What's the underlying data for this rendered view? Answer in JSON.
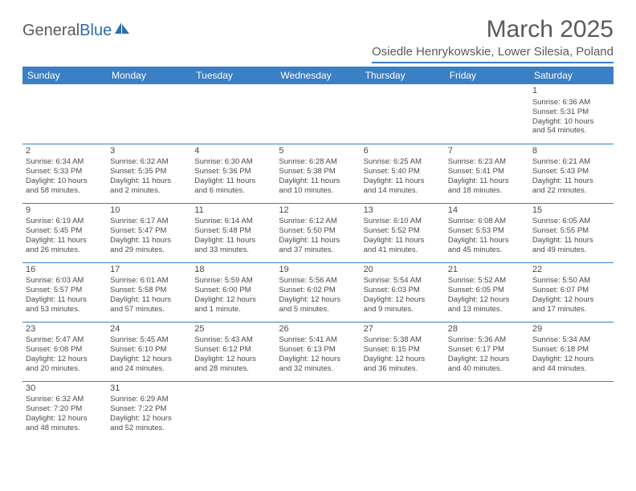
{
  "logo": {
    "part1": "General",
    "part2": "Blue"
  },
  "title": "March 2025",
  "location": "Osiedle Henrykowskie, Lower Silesia, Poland",
  "colors": {
    "header_bg": "#3b7fc4",
    "header_text": "#ffffff",
    "border": "#3b7fc4",
    "text": "#4a4a4a",
    "logo_gray": "#5a5a5a",
    "logo_blue": "#2a6db0"
  },
  "weekdays": [
    "Sunday",
    "Monday",
    "Tuesday",
    "Wednesday",
    "Thursday",
    "Friday",
    "Saturday"
  ],
  "weeks": [
    [
      null,
      null,
      null,
      null,
      null,
      null,
      {
        "n": "1",
        "sr": "Sunrise: 6:36 AM",
        "ss": "Sunset: 5:31 PM",
        "dl1": "Daylight: 10 hours",
        "dl2": "and 54 minutes."
      }
    ],
    [
      {
        "n": "2",
        "sr": "Sunrise: 6:34 AM",
        "ss": "Sunset: 5:33 PM",
        "dl1": "Daylight: 10 hours",
        "dl2": "and 58 minutes."
      },
      {
        "n": "3",
        "sr": "Sunrise: 6:32 AM",
        "ss": "Sunset: 5:35 PM",
        "dl1": "Daylight: 11 hours",
        "dl2": "and 2 minutes."
      },
      {
        "n": "4",
        "sr": "Sunrise: 6:30 AM",
        "ss": "Sunset: 5:36 PM",
        "dl1": "Daylight: 11 hours",
        "dl2": "and 6 minutes."
      },
      {
        "n": "5",
        "sr": "Sunrise: 6:28 AM",
        "ss": "Sunset: 5:38 PM",
        "dl1": "Daylight: 11 hours",
        "dl2": "and 10 minutes."
      },
      {
        "n": "6",
        "sr": "Sunrise: 6:25 AM",
        "ss": "Sunset: 5:40 PM",
        "dl1": "Daylight: 11 hours",
        "dl2": "and 14 minutes."
      },
      {
        "n": "7",
        "sr": "Sunrise: 6:23 AM",
        "ss": "Sunset: 5:41 PM",
        "dl1": "Daylight: 11 hours",
        "dl2": "and 18 minutes."
      },
      {
        "n": "8",
        "sr": "Sunrise: 6:21 AM",
        "ss": "Sunset: 5:43 PM",
        "dl1": "Daylight: 11 hours",
        "dl2": "and 22 minutes."
      }
    ],
    [
      {
        "n": "9",
        "sr": "Sunrise: 6:19 AM",
        "ss": "Sunset: 5:45 PM",
        "dl1": "Daylight: 11 hours",
        "dl2": "and 26 minutes."
      },
      {
        "n": "10",
        "sr": "Sunrise: 6:17 AM",
        "ss": "Sunset: 5:47 PM",
        "dl1": "Daylight: 11 hours",
        "dl2": "and 29 minutes."
      },
      {
        "n": "11",
        "sr": "Sunrise: 6:14 AM",
        "ss": "Sunset: 5:48 PM",
        "dl1": "Daylight: 11 hours",
        "dl2": "and 33 minutes."
      },
      {
        "n": "12",
        "sr": "Sunrise: 6:12 AM",
        "ss": "Sunset: 5:50 PM",
        "dl1": "Daylight: 11 hours",
        "dl2": "and 37 minutes."
      },
      {
        "n": "13",
        "sr": "Sunrise: 6:10 AM",
        "ss": "Sunset: 5:52 PM",
        "dl1": "Daylight: 11 hours",
        "dl2": "and 41 minutes."
      },
      {
        "n": "14",
        "sr": "Sunrise: 6:08 AM",
        "ss": "Sunset: 5:53 PM",
        "dl1": "Daylight: 11 hours",
        "dl2": "and 45 minutes."
      },
      {
        "n": "15",
        "sr": "Sunrise: 6:05 AM",
        "ss": "Sunset: 5:55 PM",
        "dl1": "Daylight: 11 hours",
        "dl2": "and 49 minutes."
      }
    ],
    [
      {
        "n": "16",
        "sr": "Sunrise: 6:03 AM",
        "ss": "Sunset: 5:57 PM",
        "dl1": "Daylight: 11 hours",
        "dl2": "and 53 minutes."
      },
      {
        "n": "17",
        "sr": "Sunrise: 6:01 AM",
        "ss": "Sunset: 5:58 PM",
        "dl1": "Daylight: 11 hours",
        "dl2": "and 57 minutes."
      },
      {
        "n": "18",
        "sr": "Sunrise: 5:59 AM",
        "ss": "Sunset: 6:00 PM",
        "dl1": "Daylight: 12 hours",
        "dl2": "and 1 minute."
      },
      {
        "n": "19",
        "sr": "Sunrise: 5:56 AM",
        "ss": "Sunset: 6:02 PM",
        "dl1": "Daylight: 12 hours",
        "dl2": "and 5 minutes."
      },
      {
        "n": "20",
        "sr": "Sunrise: 5:54 AM",
        "ss": "Sunset: 6:03 PM",
        "dl1": "Daylight: 12 hours",
        "dl2": "and 9 minutes."
      },
      {
        "n": "21",
        "sr": "Sunrise: 5:52 AM",
        "ss": "Sunset: 6:05 PM",
        "dl1": "Daylight: 12 hours",
        "dl2": "and 13 minutes."
      },
      {
        "n": "22",
        "sr": "Sunrise: 5:50 AM",
        "ss": "Sunset: 6:07 PM",
        "dl1": "Daylight: 12 hours",
        "dl2": "and 17 minutes."
      }
    ],
    [
      {
        "n": "23",
        "sr": "Sunrise: 5:47 AM",
        "ss": "Sunset: 6:08 PM",
        "dl1": "Daylight: 12 hours",
        "dl2": "and 20 minutes."
      },
      {
        "n": "24",
        "sr": "Sunrise: 5:45 AM",
        "ss": "Sunset: 6:10 PM",
        "dl1": "Daylight: 12 hours",
        "dl2": "and 24 minutes."
      },
      {
        "n": "25",
        "sr": "Sunrise: 5:43 AM",
        "ss": "Sunset: 6:12 PM",
        "dl1": "Daylight: 12 hours",
        "dl2": "and 28 minutes."
      },
      {
        "n": "26",
        "sr": "Sunrise: 5:41 AM",
        "ss": "Sunset: 6:13 PM",
        "dl1": "Daylight: 12 hours",
        "dl2": "and 32 minutes."
      },
      {
        "n": "27",
        "sr": "Sunrise: 5:38 AM",
        "ss": "Sunset: 6:15 PM",
        "dl1": "Daylight: 12 hours",
        "dl2": "and 36 minutes."
      },
      {
        "n": "28",
        "sr": "Sunrise: 5:36 AM",
        "ss": "Sunset: 6:17 PM",
        "dl1": "Daylight: 12 hours",
        "dl2": "and 40 minutes."
      },
      {
        "n": "29",
        "sr": "Sunrise: 5:34 AM",
        "ss": "Sunset: 6:18 PM",
        "dl1": "Daylight: 12 hours",
        "dl2": "and 44 minutes."
      }
    ],
    [
      {
        "n": "30",
        "sr": "Sunrise: 6:32 AM",
        "ss": "Sunset: 7:20 PM",
        "dl1": "Daylight: 12 hours",
        "dl2": "and 48 minutes."
      },
      {
        "n": "31",
        "sr": "Sunrise: 6:29 AM",
        "ss": "Sunset: 7:22 PM",
        "dl1": "Daylight: 12 hours",
        "dl2": "and 52 minutes."
      },
      null,
      null,
      null,
      null,
      null
    ]
  ]
}
